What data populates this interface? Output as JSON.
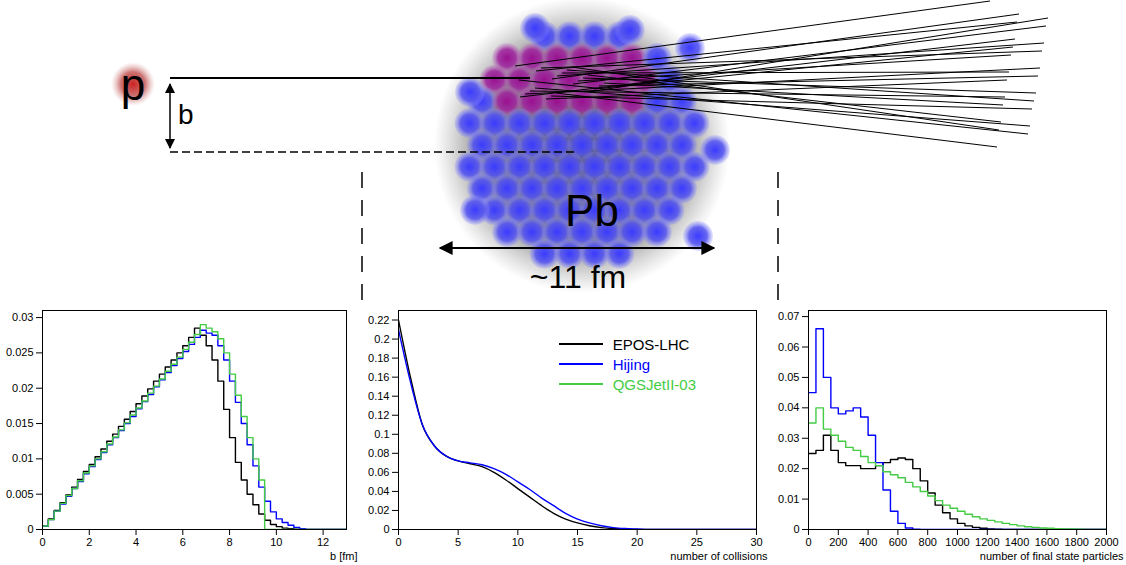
{
  "diagram": {
    "projectile": "p",
    "impact_parameter": "b",
    "target": "Pb",
    "size": "~11 fm"
  },
  "chart_data": [
    {
      "type": "histogram",
      "xlabel": "b [fm]",
      "xlim": [
        0,
        13
      ],
      "xticks": [
        0,
        2,
        4,
        6,
        8,
        10,
        12
      ],
      "ylim": [
        0,
        0.031
      ],
      "yticks": [
        0,
        0.005,
        0.01,
        0.015,
        0.02,
        0.025,
        0.03
      ],
      "bins": [
        0,
        0.25,
        0.5,
        0.75,
        1,
        1.25,
        1.5,
        1.75,
        2,
        2.25,
        2.5,
        2.75,
        3,
        3.25,
        3.5,
        3.75,
        4,
        4.25,
        4.5,
        4.75,
        5,
        5.25,
        5.5,
        5.75,
        6,
        6.25,
        6.5,
        6.75,
        7,
        7.25,
        7.5,
        7.75,
        8,
        8.25,
        8.5,
        8.75,
        9,
        9.25,
        9.5,
        9.75,
        10,
        10.25,
        10.5,
        10.75,
        11,
        11.25,
        11.5,
        11.75,
        12,
        12.25,
        12.5,
        12.75,
        13
      ],
      "series": [
        {
          "color": "#000000",
          "values": [
            0.0005,
            0.0015,
            0.0027,
            0.0038,
            0.0049,
            0.006,
            0.0071,
            0.0082,
            0.0092,
            0.0103,
            0.0114,
            0.0125,
            0.0135,
            0.0146,
            0.0156,
            0.0167,
            0.0178,
            0.0189,
            0.0199,
            0.021,
            0.022,
            0.023,
            0.024,
            0.025,
            0.026,
            0.0272,
            0.0285,
            0.0275,
            0.026,
            0.024,
            0.021,
            0.017,
            0.013,
            0.0095,
            0.007,
            0.005,
            0.0035,
            0.0022,
            0.0013,
            0.0007,
            0.0004,
            0.0002,
            0.0001,
            5e-05,
            0,
            0,
            0,
            0,
            0,
            0,
            0,
            0
          ]
        },
        {
          "color": "#0000ff",
          "values": [
            0.0005,
            0.0014,
            0.0026,
            0.0036,
            0.0047,
            0.0058,
            0.0068,
            0.0079,
            0.0089,
            0.0099,
            0.0109,
            0.012,
            0.013,
            0.014,
            0.015,
            0.016,
            0.0171,
            0.0181,
            0.0191,
            0.0202,
            0.0212,
            0.0222,
            0.0232,
            0.0242,
            0.0252,
            0.0262,
            0.0272,
            0.0282,
            0.0278,
            0.0275,
            0.026,
            0.024,
            0.021,
            0.018,
            0.015,
            0.012,
            0.009,
            0.006,
            0.004,
            0.0025,
            0.0015,
            0.001,
            0.0006,
            0.0003,
            0.0001,
            0,
            0,
            0,
            0,
            0,
            0,
            0
          ]
        },
        {
          "color": "#44cc44",
          "values": [
            0.0005,
            0.0014,
            0.0026,
            0.0037,
            0.0048,
            0.0058,
            0.0069,
            0.008,
            0.009,
            0.01,
            0.011,
            0.0121,
            0.0131,
            0.0141,
            0.0151,
            0.0162,
            0.0172,
            0.0182,
            0.0193,
            0.0203,
            0.0213,
            0.0224,
            0.0234,
            0.0244,
            0.0255,
            0.0265,
            0.0276,
            0.029,
            0.0285,
            0.028,
            0.027,
            0.025,
            0.022,
            0.019,
            0.016,
            0.013,
            0.01,
            0.007,
            0,
            0,
            0,
            0,
            0,
            0,
            0,
            0,
            0,
            0,
            0,
            0,
            0,
            0
          ]
        }
      ]
    },
    {
      "type": "line",
      "xlabel": "number of collisions",
      "legend": "top-right",
      "xlim": [
        0,
        30
      ],
      "xticks": [
        0,
        5,
        10,
        15,
        20,
        25,
        30
      ],
      "ylim": [
        0,
        0.23
      ],
      "yticks": [
        0,
        0.02,
        0.04,
        0.06,
        0.08,
        0.1,
        0.12,
        0.14,
        0.16,
        0.18,
        0.2,
        0.22
      ],
      "x": [
        0,
        1,
        2,
        3,
        4,
        5,
        6,
        7,
        8,
        9,
        10,
        11,
        12,
        13,
        14,
        15,
        16,
        17,
        18,
        19,
        20,
        21,
        22,
        23,
        24,
        25,
        26,
        27,
        28,
        29,
        30
      ],
      "series": [
        {
          "name": "EPOS-LHC",
          "color": "#000000",
          "values": [
            0.22,
            0.16,
            0.11,
            0.088,
            0.077,
            0.072,
            0.069,
            0.066,
            0.06,
            0.052,
            0.043,
            0.034,
            0.025,
            0.017,
            0.011,
            0.007,
            0.004,
            0.002,
            0.001,
            0.0005,
            0,
            0,
            0,
            0,
            0,
            0,
            0,
            0,
            0,
            0,
            0
          ]
        },
        {
          "name": "Hijing",
          "color": "#0000ff",
          "values": [
            0.21,
            0.155,
            0.11,
            0.088,
            0.077,
            0.072,
            0.07,
            0.068,
            0.064,
            0.058,
            0.05,
            0.042,
            0.033,
            0.025,
            0.017,
            0.011,
            0.007,
            0.004,
            0.002,
            0.001,
            0.0005,
            0,
            0,
            0,
            0,
            0,
            0,
            0,
            0,
            0,
            0
          ]
        },
        {
          "name": "QGSJetII-03",
          "color": "#44cc44",
          "values": [
            null,
            null,
            null,
            null,
            null,
            null,
            null,
            null,
            null,
            null,
            null,
            null,
            null,
            null,
            null,
            null,
            null,
            null,
            null,
            null,
            null,
            null,
            null,
            null,
            null,
            null,
            null,
            null,
            null,
            null,
            null
          ]
        }
      ]
    },
    {
      "type": "histogram",
      "xlabel": "number of final state particles",
      "xlim": [
        0,
        2000
      ],
      "xticks": [
        0,
        200,
        400,
        600,
        800,
        1000,
        1200,
        1400,
        1600,
        1800,
        2000
      ],
      "ylim": [
        0,
        0.072
      ],
      "yticks": [
        0,
        0.01,
        0.02,
        0.03,
        0.04,
        0.05,
        0.06,
        0.07
      ],
      "bins": [
        0,
        50,
        100,
        150,
        200,
        250,
        300,
        350,
        400,
        450,
        500,
        550,
        600,
        650,
        700,
        750,
        800,
        850,
        900,
        950,
        1000,
        1050,
        1100,
        1150,
        1200,
        1250,
        1300,
        1350,
        1400,
        1450,
        1500,
        1550,
        1600,
        1650,
        1700,
        1750,
        1800,
        1850,
        1900,
        1950,
        2000
      ],
      "series": [
        {
          "color": "#000000",
          "values": [
            0.025,
            0.026,
            0.031,
            0.026,
            0.022,
            0.021,
            0.021,
            0.02,
            0.02,
            0.021,
            0.022,
            0.023,
            0.0235,
            0.023,
            0.02,
            0.016,
            0.012,
            0.008,
            0.0055,
            0.0035,
            0.002,
            0.0012,
            0.0007,
            0.0004,
            0.0002,
            0.0001,
            0,
            0,
            0,
            0,
            0,
            0,
            0,
            0,
            0,
            0,
            0,
            0,
            0,
            0
          ]
        },
        {
          "color": "#0000ff",
          "values": [
            0.045,
            0.066,
            0.05,
            0.04,
            0.038,
            0.039,
            0.04,
            0.037,
            0.031,
            0.022,
            0.013,
            0.006,
            0.002,
            0.0005,
            0.0001,
            0,
            0,
            0,
            0,
            0,
            0,
            0,
            0,
            0,
            0,
            0,
            0,
            0,
            0,
            0,
            0,
            0,
            0,
            0,
            0,
            0,
            0,
            0,
            0,
            0
          ]
        },
        {
          "color": "#44cc44",
          "values": [
            0.035,
            0.04,
            0.033,
            0.031,
            0.029,
            0.027,
            0.026,
            0.024,
            0.022,
            0.021,
            0.019,
            0.018,
            0.017,
            0.0155,
            0.014,
            0.0125,
            0.011,
            0.0095,
            0.008,
            0.007,
            0.006,
            0.005,
            0.0042,
            0.0035,
            0.003,
            0.0025,
            0.002,
            0.0016,
            0.0012,
            0.0009,
            0.0007,
            0.0005,
            0.0004,
            0.0003,
            0.0002,
            0.00015,
            0.0001,
            5e-05,
            0,
            0
          ]
        }
      ]
    }
  ]
}
